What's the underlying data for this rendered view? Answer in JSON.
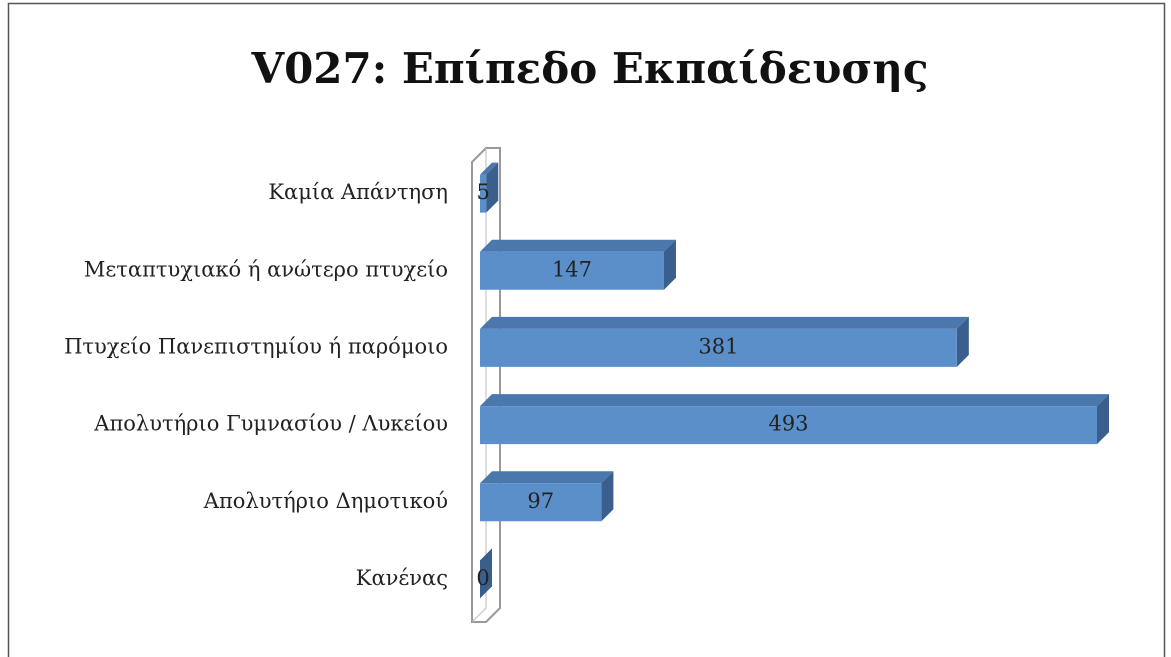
{
  "chart_data": {
    "type": "bar",
    "orientation": "horizontal",
    "title": "V027: Επίπεδο Εκπαίδευσης",
    "categories": [
      "Καμία Απάντηση",
      "Μεταπτυχιακό ή ανώτερο πτυχείο",
      "Πτυχείο Πανεπιστημίου ή παρόμοιο",
      "Απολυτήριο Γυμνασίου / Λυκείου",
      "Απολυτήριο Δημοτικού",
      "Κανένας"
    ],
    "values": [
      5,
      147,
      381,
      493,
      97,
      0
    ],
    "color": "#5b8fc9"
  }
}
